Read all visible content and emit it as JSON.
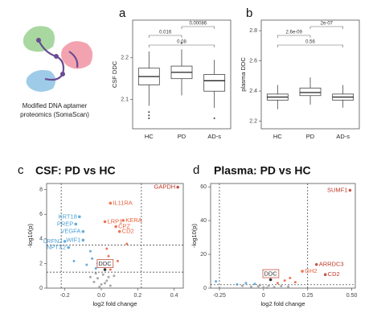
{
  "illustration": {
    "caption": [
      "Modified DNA aptamer",
      "proteomics (SomaScan)"
    ]
  },
  "chart_data": [
    {
      "type": "box",
      "label": "a",
      "ylabel": "CSF DDC",
      "categories": [
        "HC",
        "PD",
        "AD-s"
      ],
      "ylim": [
        2.03,
        2.29
      ],
      "yticks": [
        2.1,
        2.2
      ],
      "boxes": [
        {
          "min": 2.085,
          "q1": 2.135,
          "median": 2.155,
          "q3": 2.175,
          "max": 2.215,
          "outliers": [
            2.07,
            2.062,
            2.055
          ]
        },
        {
          "min": 2.11,
          "q1": 2.15,
          "median": 2.165,
          "q3": 2.18,
          "max": 2.22,
          "outliers": [
            2.235
          ]
        },
        {
          "min": 2.08,
          "q1": 2.12,
          "median": 2.145,
          "q3": 2.16,
          "max": 2.195,
          "outliers": [
            2.055
          ]
        }
      ],
      "comparisons": [
        {
          "from": 0,
          "to": 1,
          "p": "0.016"
        },
        {
          "from": 1,
          "to": 2,
          "p": "0.00086"
        },
        {
          "from": 0,
          "to": 2,
          "p": "0.08"
        }
      ]
    },
    {
      "type": "box",
      "label": "b",
      "ylabel": "plasma DDC",
      "categories": [
        "HC",
        "PD",
        "AD-s"
      ],
      "ylim": [
        2.15,
        2.87
      ],
      "yticks": [
        2.2,
        2.4,
        2.6,
        2.8
      ],
      "boxes": [
        {
          "min": 2.28,
          "q1": 2.34,
          "median": 2.36,
          "q3": 2.38,
          "max": 2.44,
          "outliers": []
        },
        {
          "min": 2.31,
          "q1": 2.37,
          "median": 2.39,
          "q3": 2.42,
          "max": 2.49,
          "outliers": []
        },
        {
          "min": 2.29,
          "q1": 2.34,
          "median": 2.36,
          "q3": 2.38,
          "max": 2.44,
          "outliers": []
        }
      ],
      "comparisons": [
        {
          "from": 0,
          "to": 1,
          "p": "2.6e-09"
        },
        {
          "from": 1,
          "to": 2,
          "p": "2e-07"
        },
        {
          "from": 0,
          "to": 2,
          "p": "0.56"
        }
      ]
    },
    {
      "type": "scatter",
      "label": "c",
      "title": "CSF: PD vs HC",
      "xlabel": "log2 fold change",
      "ylabel": "-log10(p)",
      "xlim": [
        -0.3,
        0.45
      ],
      "xticks": [
        {
          "value": -0.2,
          "label": "-0.2"
        },
        {
          "value": 0,
          "label": "0.0"
        },
        {
          "value": 0.2,
          "label": "0.2"
        },
        {
          "value": 0.4,
          "label": "0.4"
        }
      ],
      "ylim": [
        0,
        8.5
      ],
      "yticks": [
        0,
        2,
        4,
        6,
        8
      ],
      "vlines": [
        -0.22,
        0.22
      ],
      "hlines": [
        1.3,
        3.5
      ],
      "points": [
        {
          "x": 0.42,
          "y": 8.2,
          "color": "#c0392b",
          "label": "GAPDH"
        },
        {
          "x": 0.05,
          "y": 6.9,
          "color": "#e8603c",
          "label": "IL11RA"
        },
        {
          "x": 0.12,
          "y": 5.5,
          "color": "#e8603c",
          "label": "KERA"
        },
        {
          "x": 0.02,
          "y": 5.4,
          "color": "#e8603c",
          "label": "LRP1"
        },
        {
          "x": 0.08,
          "y": 5.0,
          "color": "#e8603c",
          "label": "CPZ"
        },
        {
          "x": 0.1,
          "y": 4.6,
          "color": "#e8603c",
          "label": "CD2"
        },
        {
          "x": -0.12,
          "y": 5.8,
          "color": "#4a9fd4",
          "label": "KRT18"
        },
        {
          "x": -0.14,
          "y": 5.2,
          "color": "#4a9fd4",
          "label": "PREP"
        },
        {
          "x": -0.1,
          "y": 4.6,
          "color": "#4a9fd4",
          "label": "VEGFA"
        },
        {
          "x": -0.2,
          "y": 3.8,
          "color": "#4a9fd4",
          "label": "LRFN2"
        },
        {
          "x": -0.1,
          "y": 3.9,
          "color": "#4a9fd4",
          "label": "WIF1"
        },
        {
          "x": -0.18,
          "y": 3.3,
          "color": "#4a9fd4",
          "label": "NPTX2"
        },
        {
          "x": 0.02,
          "y": 1.5,
          "color": "#111111",
          "label": "DDC"
        },
        {
          "x": -0.05,
          "y": 2.4,
          "color": "#4a9fd4"
        },
        {
          "x": -0.08,
          "y": 1.9,
          "color": "#4a9fd4"
        },
        {
          "x": -0.03,
          "y": 1.6,
          "color": "#4a9fd4"
        },
        {
          "x": -0.06,
          "y": 3.0,
          "color": "#4a9fd4"
        },
        {
          "x": -0.15,
          "y": 2.2,
          "color": "#4a9fd4"
        },
        {
          "x": -0.02,
          "y": 2.0,
          "color": "#4a9fd4"
        },
        {
          "x": 0.04,
          "y": 2.6,
          "color": "#e8603c"
        },
        {
          "x": 0.06,
          "y": 1.8,
          "color": "#e8603c"
        },
        {
          "x": 0.03,
          "y": 3.2,
          "color": "#e8603c"
        },
        {
          "x": 0.09,
          "y": 2.2,
          "color": "#e8603c"
        },
        {
          "x": 0.05,
          "y": 1.5,
          "color": "#e8603c"
        },
        {
          "x": 0.14,
          "y": 3.6,
          "color": "#e8603c"
        },
        {
          "x": 0.0,
          "y": 0.3,
          "color": "#999999"
        },
        {
          "x": -0.02,
          "y": 0.8,
          "color": "#999999"
        },
        {
          "x": 0.01,
          "y": 1.1,
          "color": "#999999"
        },
        {
          "x": -0.04,
          "y": 0.5,
          "color": "#999999"
        },
        {
          "x": 0.03,
          "y": 0.6,
          "color": "#999999"
        },
        {
          "x": 0.05,
          "y": 0.2,
          "color": "#999999"
        },
        {
          "x": -0.06,
          "y": 0.9,
          "color": "#999999"
        },
        {
          "x": 0.07,
          "y": 1.0,
          "color": "#999999"
        },
        {
          "x": -0.01,
          "y": 0.1,
          "color": "#999999"
        },
        {
          "x": 0.02,
          "y": 0.4,
          "color": "#999999"
        },
        {
          "x": -0.03,
          "y": 1.2,
          "color": "#999999"
        },
        {
          "x": 0.04,
          "y": 0.9,
          "color": "#999999"
        }
      ]
    },
    {
      "type": "scatter",
      "label": "d",
      "title": "Plasma: PD vs HC",
      "xlabel": "log2 fold change",
      "ylabel": "-log10(p)",
      "xlim": [
        -0.3,
        0.52
      ],
      "xticks": [
        {
          "value": -0.25,
          "label": "-0.25"
        },
        0,
        0.25,
        {
          "value": 0.5,
          "label": "0.50"
        }
      ],
      "ylim": [
        0,
        62
      ],
      "yticks": [
        0,
        20,
        40,
        60
      ],
      "vlines": [
        -0.25,
        0.25
      ],
      "hlines": [
        2
      ],
      "points": [
        {
          "x": 0.49,
          "y": 58,
          "color": "#c0392b",
          "label": "SUMF1"
        },
        {
          "x": 0.3,
          "y": 14,
          "color": "#c0392b",
          "label": "ARRDC3"
        },
        {
          "x": 0.22,
          "y": 10,
          "color": "#e8603c",
          "label": "GH2"
        },
        {
          "x": 0.35,
          "y": 8,
          "color": "#c0392b",
          "label": "CD2"
        },
        {
          "x": 0.04,
          "y": 5,
          "color": "#111111",
          "label": "DDC"
        },
        {
          "x": -0.05,
          "y": 2.5,
          "color": "#4a9fd4"
        },
        {
          "x": -0.1,
          "y": 3.0,
          "color": "#4a9fd4"
        },
        {
          "x": -0.15,
          "y": 2.2,
          "color": "#4a9fd4"
        },
        {
          "x": -0.27,
          "y": 4.0,
          "color": "#4a9fd4"
        },
        {
          "x": 0.08,
          "y": 3.0,
          "color": "#e8603c"
        },
        {
          "x": 0.12,
          "y": 4.5,
          "color": "#e8603c"
        },
        {
          "x": 0.18,
          "y": 3.5,
          "color": "#e8603c"
        },
        {
          "x": 0.15,
          "y": 6.0,
          "color": "#e8603c"
        },
        {
          "x": 0.0,
          "y": 0.5,
          "color": "#999999"
        },
        {
          "x": -0.03,
          "y": 1.0,
          "color": "#999999"
        },
        {
          "x": 0.03,
          "y": 1.5,
          "color": "#999999"
        },
        {
          "x": -0.07,
          "y": 0.8,
          "color": "#999999"
        },
        {
          "x": 0.06,
          "y": 0.6,
          "color": "#999999"
        },
        {
          "x": 0.1,
          "y": 1.2,
          "color": "#999999"
        },
        {
          "x": -0.12,
          "y": 1.4,
          "color": "#999999"
        },
        {
          "x": 0.14,
          "y": 0.9,
          "color": "#999999"
        },
        {
          "x": -0.02,
          "y": 1.8,
          "color": "#999999"
        },
        {
          "x": 0.02,
          "y": 0.2,
          "color": "#999999"
        }
      ]
    }
  ]
}
